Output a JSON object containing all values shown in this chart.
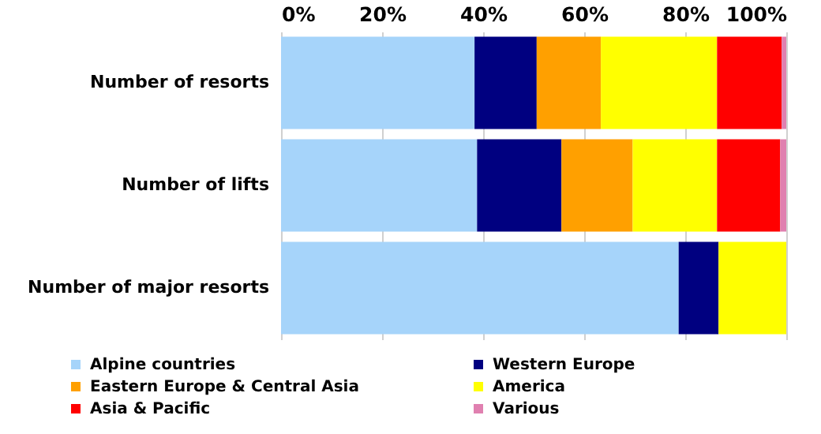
{
  "chart_data": {
    "type": "bar",
    "orientation": "horizontal",
    "stacked": true,
    "categories": [
      "Number of resorts",
      "Number of lifts",
      "Number of  major resorts"
    ],
    "series": [
      {
        "name": "Alpine countries",
        "color": "#a6d4fa",
        "values": [
          38.3,
          38.8,
          78.7
        ]
      },
      {
        "name": "Western Europe",
        "color": "#000080",
        "values": [
          12.3,
          16.7,
          7.9
        ]
      },
      {
        "name": "Eastern Europe & Central Asia",
        "color": "#ffa000",
        "values": [
          12.7,
          14.1,
          0
        ]
      },
      {
        "name": "America",
        "color": "#ffff00",
        "values": [
          23,
          16.7,
          13.4
        ]
      },
      {
        "name": "Asia & Pacific",
        "color": "#ff0000",
        "values": [
          12.8,
          12.5,
          0
        ]
      },
      {
        "name": "Various",
        "color": "#e080b0",
        "values": [
          0.9,
          1.2,
          0
        ]
      }
    ],
    "xlim": [
      0,
      100
    ],
    "xticks": [
      {
        "value": 0,
        "label": "0%"
      },
      {
        "value": 20,
        "label": "20%"
      },
      {
        "value": 40,
        "label": "40%"
      },
      {
        "value": 60,
        "label": "60%"
      },
      {
        "value": 80,
        "label": "80%"
      },
      {
        "value": 100,
        "label": "100%"
      }
    ],
    "grid": "x",
    "legend": "bottom"
  }
}
